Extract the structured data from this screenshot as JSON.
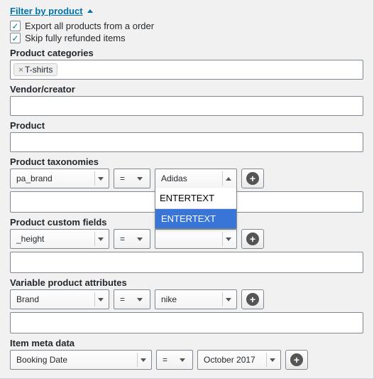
{
  "header": {
    "title": "Filter by product"
  },
  "checkboxes": {
    "export_all": {
      "label": "Export all products from a order",
      "checked": true
    },
    "skip_refunded": {
      "label": "Skip fully refunded items",
      "checked": true
    }
  },
  "product_categories": {
    "label": "Product categories",
    "tags": [
      "T-shirts"
    ]
  },
  "vendor": {
    "label": "Vendor/creator"
  },
  "product": {
    "label": "Product"
  },
  "taxonomies": {
    "label": "Product taxonomies",
    "field": "pa_brand",
    "compare": "=",
    "value": "Adidas",
    "dropdown": {
      "search": "ENTERTEXT",
      "option": "ENTERTEXT"
    }
  },
  "custom_fields": {
    "label": "Product custom fields",
    "field": "_height",
    "compare": "="
  },
  "variable_attrs": {
    "label": "Variable product attributes",
    "field": "Brand",
    "compare": "=",
    "value": "nike"
  },
  "item_meta": {
    "label": "Item meta data",
    "field": "Booking Date",
    "compare": "=",
    "value": "October 2017"
  },
  "icons": {
    "check": "✓",
    "times": "×",
    "plus": "+"
  }
}
